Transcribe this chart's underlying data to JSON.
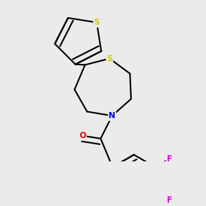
{
  "background_color": "#ebebeb",
  "bond_color": "#000000",
  "atom_colors": {
    "S": "#cccc00",
    "N": "#0000ee",
    "O": "#ee0000",
    "F": "#dd00dd",
    "C": "#000000"
  },
  "figsize": [
    3.0,
    3.0
  ],
  "dpi": 100
}
